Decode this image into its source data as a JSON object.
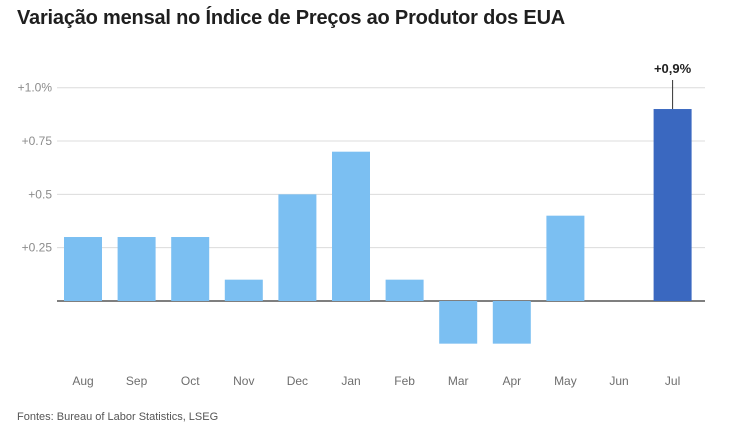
{
  "title": "Variação mensal no Índice de Preços ao Produtor dos EUA",
  "source": "Fontes: Bureau of Labor Statistics, LSEG",
  "colors": {
    "bar": "#7bbff2",
    "highlight": "#3a68c0",
    "grid": "#dcdcdc",
    "zero": "#333333"
  },
  "chart_data": {
    "type": "bar",
    "categories": [
      "Aug",
      "Sep",
      "Oct",
      "Nov",
      "Dec",
      "Jan",
      "Feb",
      "Mar",
      "Apr",
      "May",
      "Jun",
      "Jul"
    ],
    "values": [
      0.3,
      0.3,
      0.3,
      0.1,
      0.5,
      0.7,
      0.1,
      -0.2,
      -0.2,
      0.4,
      0.0,
      0.9
    ],
    "ylim": [
      -0.2,
      1.0
    ],
    "yticks": [
      1.0,
      0.75,
      0.5,
      0.25
    ],
    "ytick_labels": [
      "+1.0%",
      "+0.75",
      "+0.5",
      "+0.25"
    ],
    "highlight_index": 11,
    "data_labels": [
      {
        "index": 11,
        "text": "+0,9%"
      }
    ],
    "grid": true
  }
}
